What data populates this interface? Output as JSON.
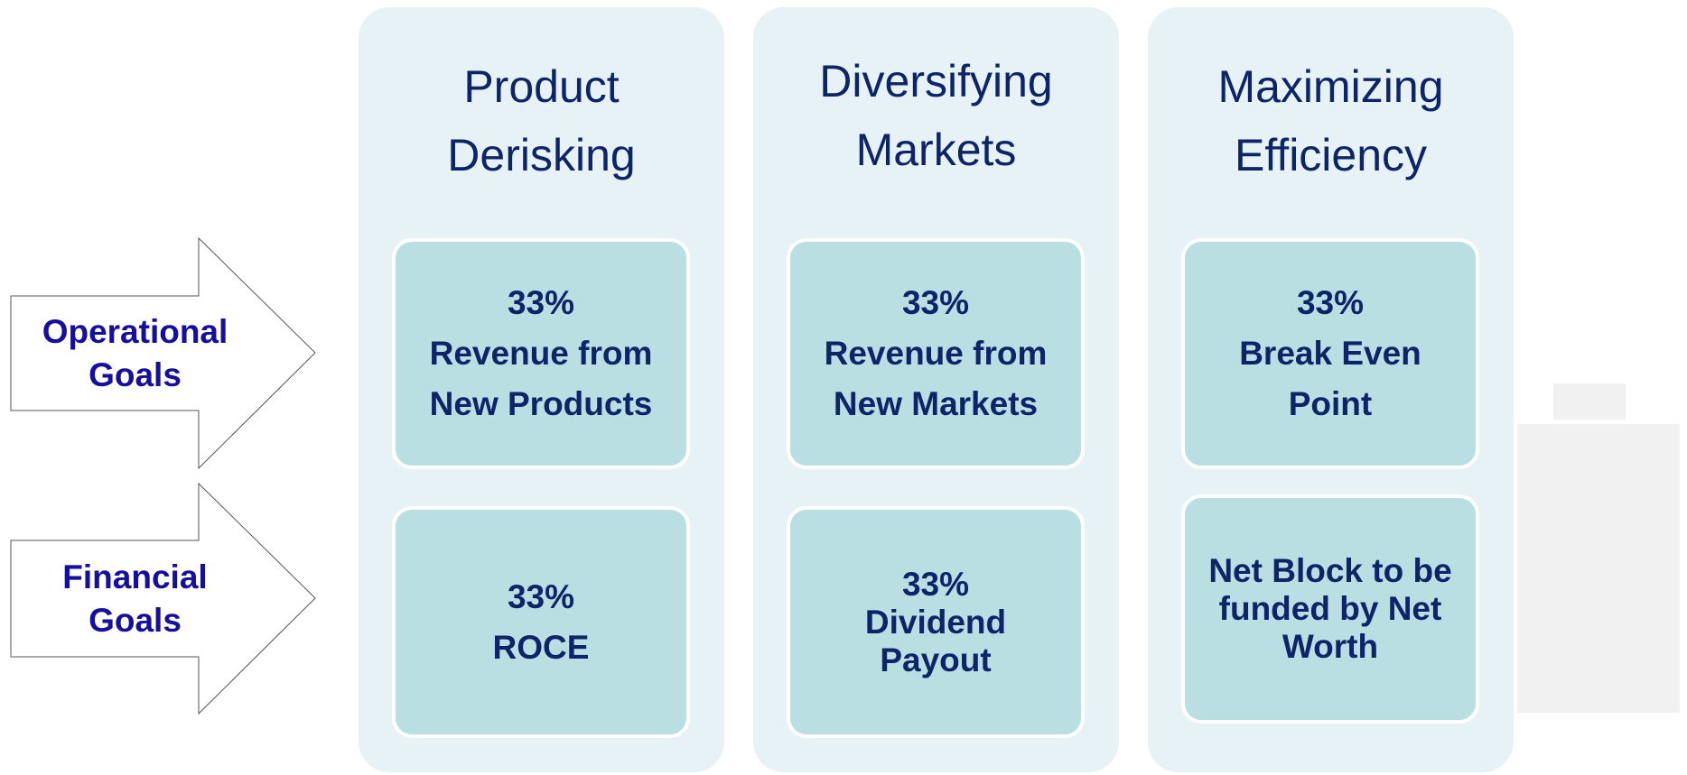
{
  "goals": [
    {
      "lines": [
        "Operational",
        "Goals"
      ]
    },
    {
      "lines": [
        "Financial",
        "Goals"
      ]
    }
  ],
  "columns": [
    {
      "title": [
        "Product",
        "Derisking"
      ],
      "cells": [
        {
          "lines": [
            "33%",
            "Revenue from",
            "New Products"
          ]
        },
        {
          "lines": [
            "33%",
            "ROCE"
          ]
        }
      ]
    },
    {
      "title": [
        "Diversifying",
        "Markets"
      ],
      "cells": [
        {
          "lines": [
            "33%",
            "Revenue from",
            "New Markets"
          ]
        },
        {
          "lines": [
            "33%",
            "Dividend",
            "Payout"
          ]
        }
      ]
    },
    {
      "title": [
        "Maximizing",
        "Efficiency"
      ],
      "cells": [
        {
          "lines": [
            "33%",
            "Break Even",
            "Point"
          ]
        },
        {
          "lines": [
            "Net Block to be",
            "funded by Net",
            "Worth"
          ]
        }
      ]
    }
  ]
}
